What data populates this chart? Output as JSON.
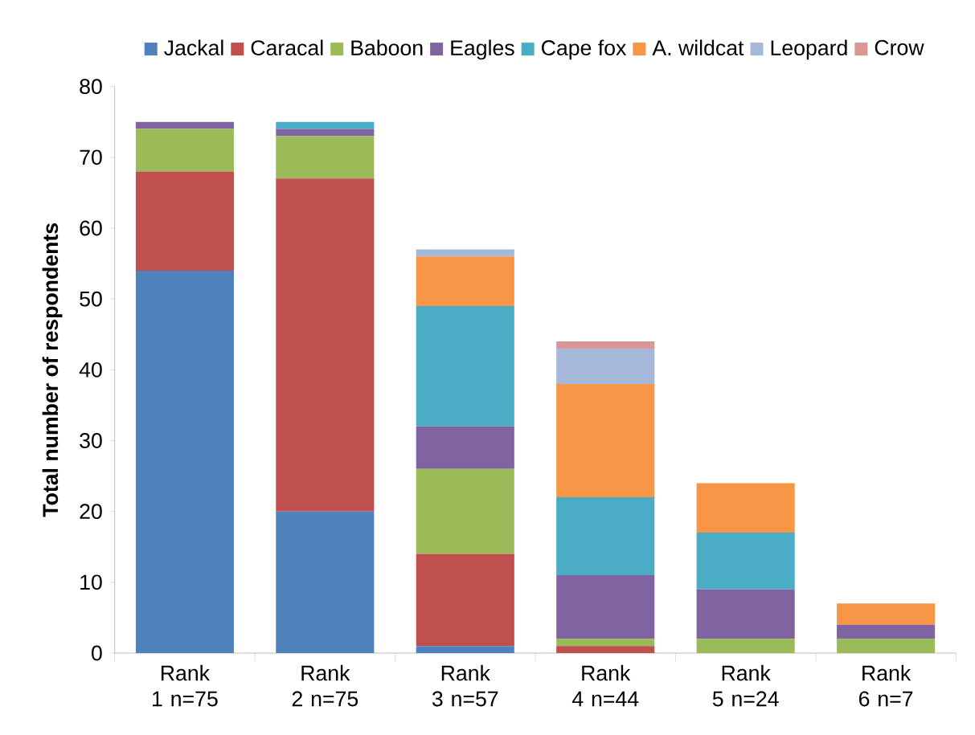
{
  "chart_data": {
    "type": "bar",
    "stacked": true,
    "ylabel": "Total number of respondents",
    "categories": [
      "Rank 1 n=75",
      "Rank 2 n=75",
      "Rank 3 n=57",
      "Rank 4 n=44",
      "Rank 5 n=24",
      "Rank 6 n=7"
    ],
    "series": [
      {
        "name": "Jackal",
        "color": "#4f81bd",
        "values": [
          54,
          20,
          1,
          null,
          null,
          null
        ]
      },
      {
        "name": "Caracal",
        "color": "#c0504d",
        "values": [
          14,
          47,
          13,
          1,
          null,
          null
        ]
      },
      {
        "name": "Baboon",
        "color": "#9bbb59",
        "values": [
          6,
          6,
          12,
          1,
          2,
          2
        ]
      },
      {
        "name": "Eagles",
        "color": "#8064a2",
        "values": [
          1,
          1,
          6,
          9,
          7,
          2
        ]
      },
      {
        "name": "Cape fox",
        "color": "#4bacc6",
        "values": [
          null,
          1,
          17,
          11,
          8,
          null
        ]
      },
      {
        "name": "A. wildcat",
        "color": "#f79646",
        "values": [
          null,
          null,
          7,
          16,
          7,
          3
        ]
      },
      {
        "name": "Leopard",
        "color": "#a5b8da",
        "values": [
          null,
          null,
          1,
          5,
          null,
          null
        ]
      },
      {
        "name": "Crow",
        "color": "#d99694",
        "values": [
          null,
          null,
          null,
          1,
          null,
          null
        ]
      }
    ],
    "ylim": [
      0,
      80
    ],
    "yticks": [
      0,
      10,
      20,
      30,
      40,
      50,
      60,
      70,
      80
    ],
    "grid": false,
    "legend": "top"
  }
}
